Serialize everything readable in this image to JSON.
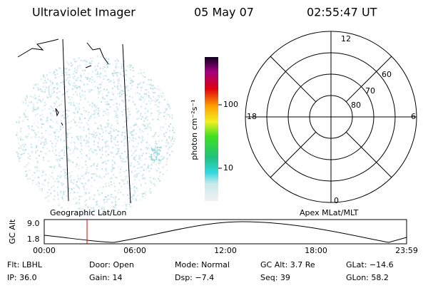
{
  "header": {
    "title": "Ultraviolet Imager",
    "date": "05 May 07",
    "time": "02:55:47 UT"
  },
  "left_panel_label": "Geographic Lat/Lon",
  "right_panel_label": "Apex MLat/MLT",
  "colorbar": {
    "label": "photon cm⁻²s⁻¹",
    "ticks": [
      "100",
      "10"
    ]
  },
  "polar": {
    "mlt_labels": [
      "12",
      "18",
      "6",
      "0"
    ],
    "lat_labels": [
      "60",
      "70",
      "80"
    ]
  },
  "alt_plot": {
    "ylabel": "GC Alt",
    "yticks": [
      "9.0",
      "1.8"
    ],
    "xticks": [
      "00:00",
      "06:00",
      "12:00",
      "18:00",
      "23:59"
    ]
  },
  "info": [
    [
      "Flt: LBHL",
      "Door: Open",
      "Mode: Normal",
      "GC Alt: 3.7 Re",
      "GLat: −14.6"
    ],
    [
      "IP: 36.0",
      "Gain: 14",
      "Dsp:   −7.4",
      "Seq: 39",
      "GLon:  58.2"
    ]
  ]
}
